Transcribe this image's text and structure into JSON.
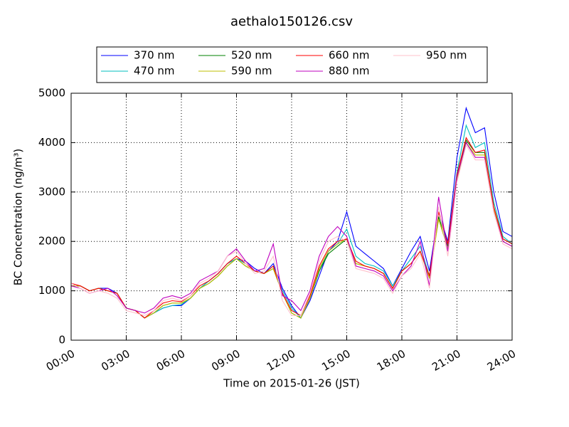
{
  "chart_data": {
    "type": "line",
    "title": "aethalo150126.csv",
    "x_label": "Time on 2015-01-26 (JST)",
    "y_label": "BC Concentration (ng/m³)",
    "x": [
      0,
      0.5,
      1,
      1.5,
      2,
      2.5,
      3,
      3.5,
      4,
      4.5,
      5,
      5.5,
      6,
      6.5,
      7,
      7.5,
      8,
      8.5,
      9,
      9.5,
      10,
      10.5,
      11,
      11.5,
      12,
      12.5,
      13,
      13.5,
      14,
      14.5,
      15,
      15.5,
      16,
      16.5,
      17,
      17.5,
      18,
      18.5,
      19,
      19.5,
      20,
      20.5,
      21,
      21.5,
      22,
      22.5,
      23,
      23.5,
      24
    ],
    "xlim": [
      0,
      24
    ],
    "xticks": [
      {
        "value": 0,
        "label": "00:00"
      },
      {
        "value": 3,
        "label": "03:00"
      },
      {
        "value": 6,
        "label": "06:00"
      },
      {
        "value": 9,
        "label": "09:00"
      },
      {
        "value": 12,
        "label": "12:00"
      },
      {
        "value": 15,
        "label": "15:00"
      },
      {
        "value": 18,
        "label": "18:00"
      },
      {
        "value": 21,
        "label": "21:00"
      },
      {
        "value": 24,
        "label": "24:00"
      }
    ],
    "ylim": [
      0,
      5000
    ],
    "yticks": [
      0,
      1000,
      2000,
      3000,
      4000,
      5000
    ],
    "grid": true,
    "legend_columns": 4,
    "series": [
      {
        "name": "370 nm",
        "color": "#0000ff",
        "values": [
          1100,
          1100,
          1000,
          1050,
          1050,
          950,
          650,
          600,
          450,
          550,
          650,
          700,
          700,
          850,
          1050,
          1200,
          1350,
          1550,
          1650,
          1600,
          1450,
          1350,
          1550,
          1050,
          700,
          450,
          800,
          1300,
          1800,
          2000,
          2600,
          1900,
          1750,
          1600,
          1450,
          1100,
          1450,
          1800,
          2100,
          1400,
          2600,
          2000,
          3700,
          4700,
          4200,
          4300,
          3000,
          2200,
          2100
        ]
      },
      {
        "name": "470 nm",
        "color": "#00bfbf",
        "values": [
          1100,
          1100,
          1000,
          1050,
          1000,
          950,
          650,
          600,
          450,
          550,
          650,
          700,
          720,
          850,
          1050,
          1200,
          1350,
          1550,
          1650,
          1550,
          1400,
          1350,
          1500,
          1000,
          650,
          450,
          850,
          1400,
          1800,
          1950,
          2250,
          1700,
          1550,
          1500,
          1400,
          1100,
          1400,
          1650,
          1900,
          1300,
          2500,
          1950,
          3400,
          4350,
          3900,
          4000,
          2800,
          2100,
          1950
        ]
      },
      {
        "name": "520 nm",
        "color": "#008000",
        "values": [
          1100,
          1100,
          1000,
          1050,
          1000,
          950,
          650,
          600,
          450,
          550,
          700,
          750,
          750,
          850,
          1050,
          1150,
          1300,
          1500,
          1650,
          1500,
          1400,
          1350,
          1450,
          950,
          550,
          450,
          850,
          1400,
          1750,
          1900,
          2050,
          1550,
          1500,
          1450,
          1350,
          1050,
          1400,
          1550,
          1800,
          1300,
          2500,
          1900,
          3300,
          4050,
          3800,
          3800,
          2700,
          2050,
          1950
        ]
      },
      {
        "name": "590 nm",
        "color": "#bfbf00",
        "values": [
          1100,
          1100,
          1000,
          1050,
          1000,
          950,
          650,
          600,
          450,
          550,
          700,
          750,
          750,
          850,
          1050,
          1150,
          1300,
          1500,
          1650,
          1500,
          1400,
          1350,
          1450,
          950,
          550,
          450,
          850,
          1450,
          1800,
          1950,
          2050,
          1550,
          1500,
          1450,
          1350,
          1050,
          1400,
          1550,
          1800,
          1250,
          2450,
          1850,
          3250,
          4000,
          3750,
          3750,
          2650,
          2000,
          1900
        ]
      },
      {
        "name": "660 nm",
        "color": "#ff0000",
        "values": [
          1150,
          1100,
          1000,
          1050,
          1000,
          950,
          650,
          600,
          450,
          600,
          750,
          800,
          780,
          900,
          1100,
          1200,
          1350,
          1550,
          1700,
          1550,
          1400,
          1350,
          1500,
          950,
          600,
          500,
          900,
          1500,
          1850,
          2000,
          2050,
          1600,
          1500,
          1450,
          1350,
          1050,
          1400,
          1550,
          1800,
          1300,
          2600,
          1950,
          3350,
          4100,
          3800,
          3850,
          2700,
          2050,
          1950
        ]
      },
      {
        "name": "880 nm",
        "color": "#bf00bf",
        "values": [
          1100,
          1050,
          950,
          1000,
          1050,
          900,
          650,
          600,
          550,
          650,
          850,
          900,
          850,
          950,
          1200,
          1300,
          1400,
          1700,
          1850,
          1600,
          1400,
          1450,
          1950,
          900,
          800,
          600,
          1000,
          1700,
          2100,
          2300,
          2100,
          1500,
          1450,
          1400,
          1300,
          1000,
          1300,
          1500,
          2000,
          1100,
          2900,
          1800,
          3300,
          4000,
          3700,
          3700,
          2600,
          2000,
          1900
        ]
      },
      {
        "name": "950 nm",
        "color": "#ffc0cb",
        "values": [
          1150,
          1050,
          950,
          1000,
          950,
          850,
          600,
          550,
          500,
          600,
          800,
          850,
          800,
          900,
          1150,
          1250,
          1400,
          1700,
          1800,
          1550,
          1350,
          1400,
          1700,
          800,
          500,
          500,
          950,
          1600,
          2000,
          2100,
          2000,
          1450,
          1400,
          1350,
          1250,
          950,
          1300,
          1450,
          1750,
          1050,
          2700,
          1700,
          3200,
          3950,
          3650,
          3650,
          2600,
          1950,
          1850
        ]
      }
    ]
  }
}
